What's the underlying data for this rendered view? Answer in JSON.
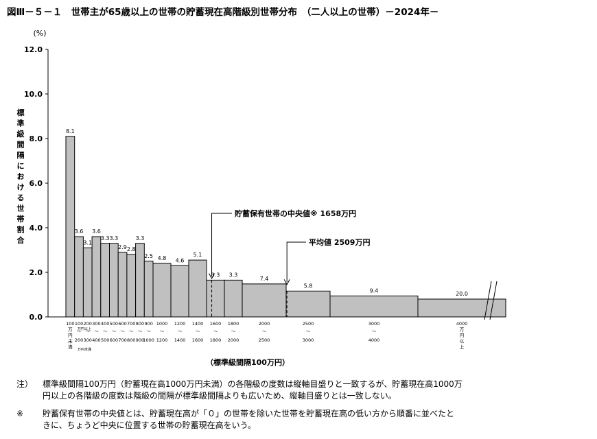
{
  "title": "図Ⅲ－５－１　世帯主が65歳以上の世帯の貯蓄現在高階級別世帯分布　（二人以上の世帯）－2024年－",
  "chart_data": {
    "type": "bar",
    "title": "図Ⅲ－５－１　世帯主が65歳以上の世帯の貯蓄現在高階級別世帯分布　（二人以上の世帯）－2024年－",
    "ylabel": "標準級間隔における世帯割合",
    "yunit": "(%)",
    "xlabel": "（標準級間隔100万円）",
    "ylim": [
      0,
      12
    ],
    "yticks": [
      "0.0",
      "2.0",
      "4.0",
      "6.0",
      "8.0",
      "10.0",
      "12.0"
    ],
    "grid": false,
    "bars": [
      {
        "value": 8.1,
        "label": "8.1",
        "x0": 0,
        "x1": 1,
        "cat": [
          "100",
          "万",
          "円",
          "未",
          "満"
        ]
      },
      {
        "value": 3.6,
        "label": "3.6",
        "x0": 1,
        "x1": 2,
        "cat": [
          "100",
          "～",
          "200"
        ]
      },
      {
        "value": 3.1,
        "label": "3.1",
        "x0": 2,
        "x1": 3,
        "cat": [
          "200",
          "～",
          "300"
        ]
      },
      {
        "value": 3.6,
        "label": "3.6",
        "x0": 3,
        "x1": 4,
        "cat": [
          "300",
          "～",
          "400"
        ]
      },
      {
        "value": 3.3,
        "label": "3.3",
        "x0": 4,
        "x1": 5,
        "cat": [
          "400",
          "～",
          "500"
        ]
      },
      {
        "value": 3.3,
        "label": "3.3",
        "x0": 5,
        "x1": 6,
        "cat": [
          "500",
          "～",
          "600"
        ]
      },
      {
        "value": 2.9,
        "label": "2.9",
        "x0": 6,
        "x1": 7,
        "cat": [
          "600",
          "～",
          "700"
        ]
      },
      {
        "value": 2.8,
        "label": "2.8",
        "x0": 7,
        "x1": 8,
        "cat": [
          "700",
          "～",
          "800"
        ]
      },
      {
        "value": 3.3,
        "label": "3.3",
        "x0": 8,
        "x1": 9,
        "cat": [
          "800",
          "～",
          "900"
        ]
      },
      {
        "value": 2.5,
        "label": "2.5",
        "x0": 9,
        "x1": 10,
        "cat": [
          "900",
          "～",
          "1000"
        ]
      },
      {
        "value": 2.4,
        "label": "4.8",
        "x0": 10,
        "x1": 12,
        "cat": [
          "1000",
          "～",
          "1200"
        ]
      },
      {
        "value": 2.3,
        "label": "4.6",
        "x0": 12,
        "x1": 14,
        "cat": [
          "1200",
          "～",
          "1400"
        ]
      },
      {
        "value": 2.55,
        "label": "5.1",
        "x0": 14,
        "x1": 16,
        "cat": [
          "1400",
          "～",
          "1600"
        ]
      },
      {
        "value": 1.65,
        "label": "3.3",
        "x0": 16,
        "x1": 18,
        "cat": [
          "1600",
          "～",
          "1800"
        ]
      },
      {
        "value": 1.65,
        "label": "3.3",
        "x0": 18,
        "x1": 20,
        "cat": [
          "1800",
          "～",
          "2000"
        ]
      },
      {
        "value": 1.48,
        "label": "7.4",
        "x0": 20,
        "x1": 25,
        "cat": [
          "2000",
          "～",
          "2500"
        ]
      },
      {
        "value": 1.16,
        "label": "5.8",
        "x0": 25,
        "x1": 30,
        "cat": [
          "2500",
          "～",
          "3000"
        ]
      },
      {
        "value": 0.94,
        "label": "9.4",
        "x0": 30,
        "x1": 40,
        "cat": [
          "3000",
          "～",
          "4000"
        ]
      },
      {
        "value": 0.8,
        "label": "20.0",
        "x0": 40,
        "x1": 50,
        "cat": [
          "4000",
          "万",
          "円",
          "以",
          "上"
        ]
      }
    ],
    "extra_labels": [
      {
        "text": "万円以上",
        "x0": 1,
        "x1": 2
      },
      {
        "text": "万円未満",
        "x0": 1,
        "x1": 2
      }
    ],
    "annotations": [
      {
        "text": "貯蓄保有世帯の中央値※ 1658万円",
        "x": 16.58
      },
      {
        "text": "平均値  2509万円",
        "x": 25.09
      }
    ]
  },
  "notes": {
    "note1_mark": "注）",
    "note1_line1": "標準級間隔100万円（貯蓄現在高1000万円未満）の各階級の度数は縦軸目盛りと一致するが、貯蓄現在高1000万",
    "note1_line2": "円以上の各階級の度数は階級の間隔が標準級間隔よりも広いため、縦軸目盛りとは一致しない。",
    "note2_mark": "※",
    "note2_line1": "貯蓄保有世帯の中央値とは、貯蓄現在高が「０」の世帯を除いた世帯を貯蓄現在高の低い方から順番に並べたと",
    "note2_line2": "きに、ちょうど中央に位置する世帯の貯蓄現在高をいう。"
  }
}
